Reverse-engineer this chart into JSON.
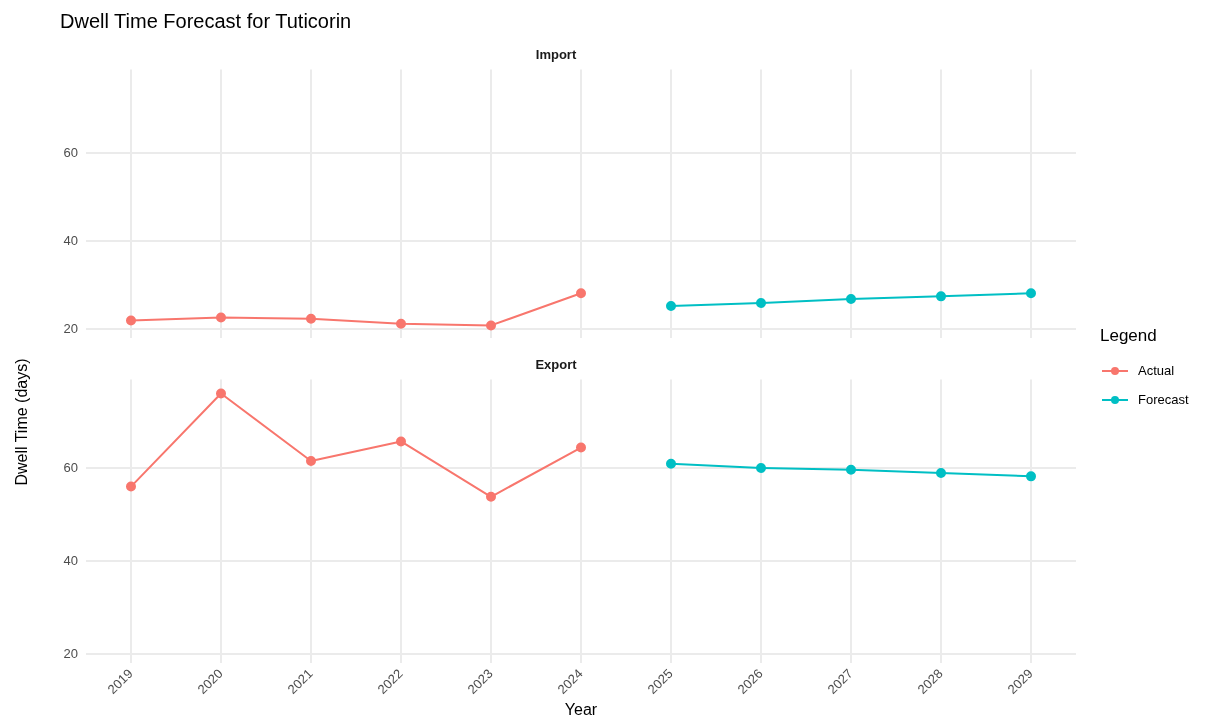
{
  "chart_data": [
    {
      "type": "line",
      "title": "Dwell Time Forecast for Tuticorin",
      "subtitle": "Import",
      "categories": [
        "2019",
        "2020",
        "2021",
        "2022",
        "2023",
        "2024",
        "2025",
        "2026",
        "2027",
        "2028",
        "2029"
      ],
      "series": [
        {
          "name": "Actual",
          "color": "#f8766d",
          "values": [
            22.0,
            22.7,
            22.4,
            21.3,
            20.9,
            28.2,
            null,
            null,
            null,
            null,
            null
          ]
        },
        {
          "name": "Forecast",
          "color": "#00bfc4",
          "values": [
            null,
            null,
            null,
            null,
            null,
            null,
            25.3,
            26.0,
            26.9,
            27.5,
            28.2
          ]
        }
      ],
      "ylim": [
        18,
        79
      ],
      "yticks": [
        20,
        40,
        60
      ],
      "grid": true,
      "marker": "circle",
      "line_style": "solid",
      "tick_labels": "y",
      "legend": "right",
      "legend_title": "Legend"
    },
    {
      "type": "line",
      "title": "Export",
      "xlabel": "Year",
      "ylabel": "Dwell Time (days)",
      "categories": [
        "2019",
        "2020",
        "2021",
        "2022",
        "2023",
        "2024",
        "2025",
        "2026",
        "2027",
        "2028",
        "2029"
      ],
      "series": [
        {
          "color": "#f8766d",
          "values": [
            56.0,
            76.0,
            61.5,
            65.7,
            53.8,
            64.4,
            null,
            null,
            null,
            null,
            null
          ]
        },
        {
          "color": "#00bfc4",
          "values": [
            null,
            null,
            null,
            null,
            null,
            null,
            60.9,
            60.0,
            59.6,
            58.9,
            58.2
          ]
        }
      ],
      "ylim": [
        18,
        79
      ],
      "yticks": [
        20,
        40,
        60
      ],
      "grid": true,
      "marker": "circle",
      "line_style": "solid"
    }
  ]
}
